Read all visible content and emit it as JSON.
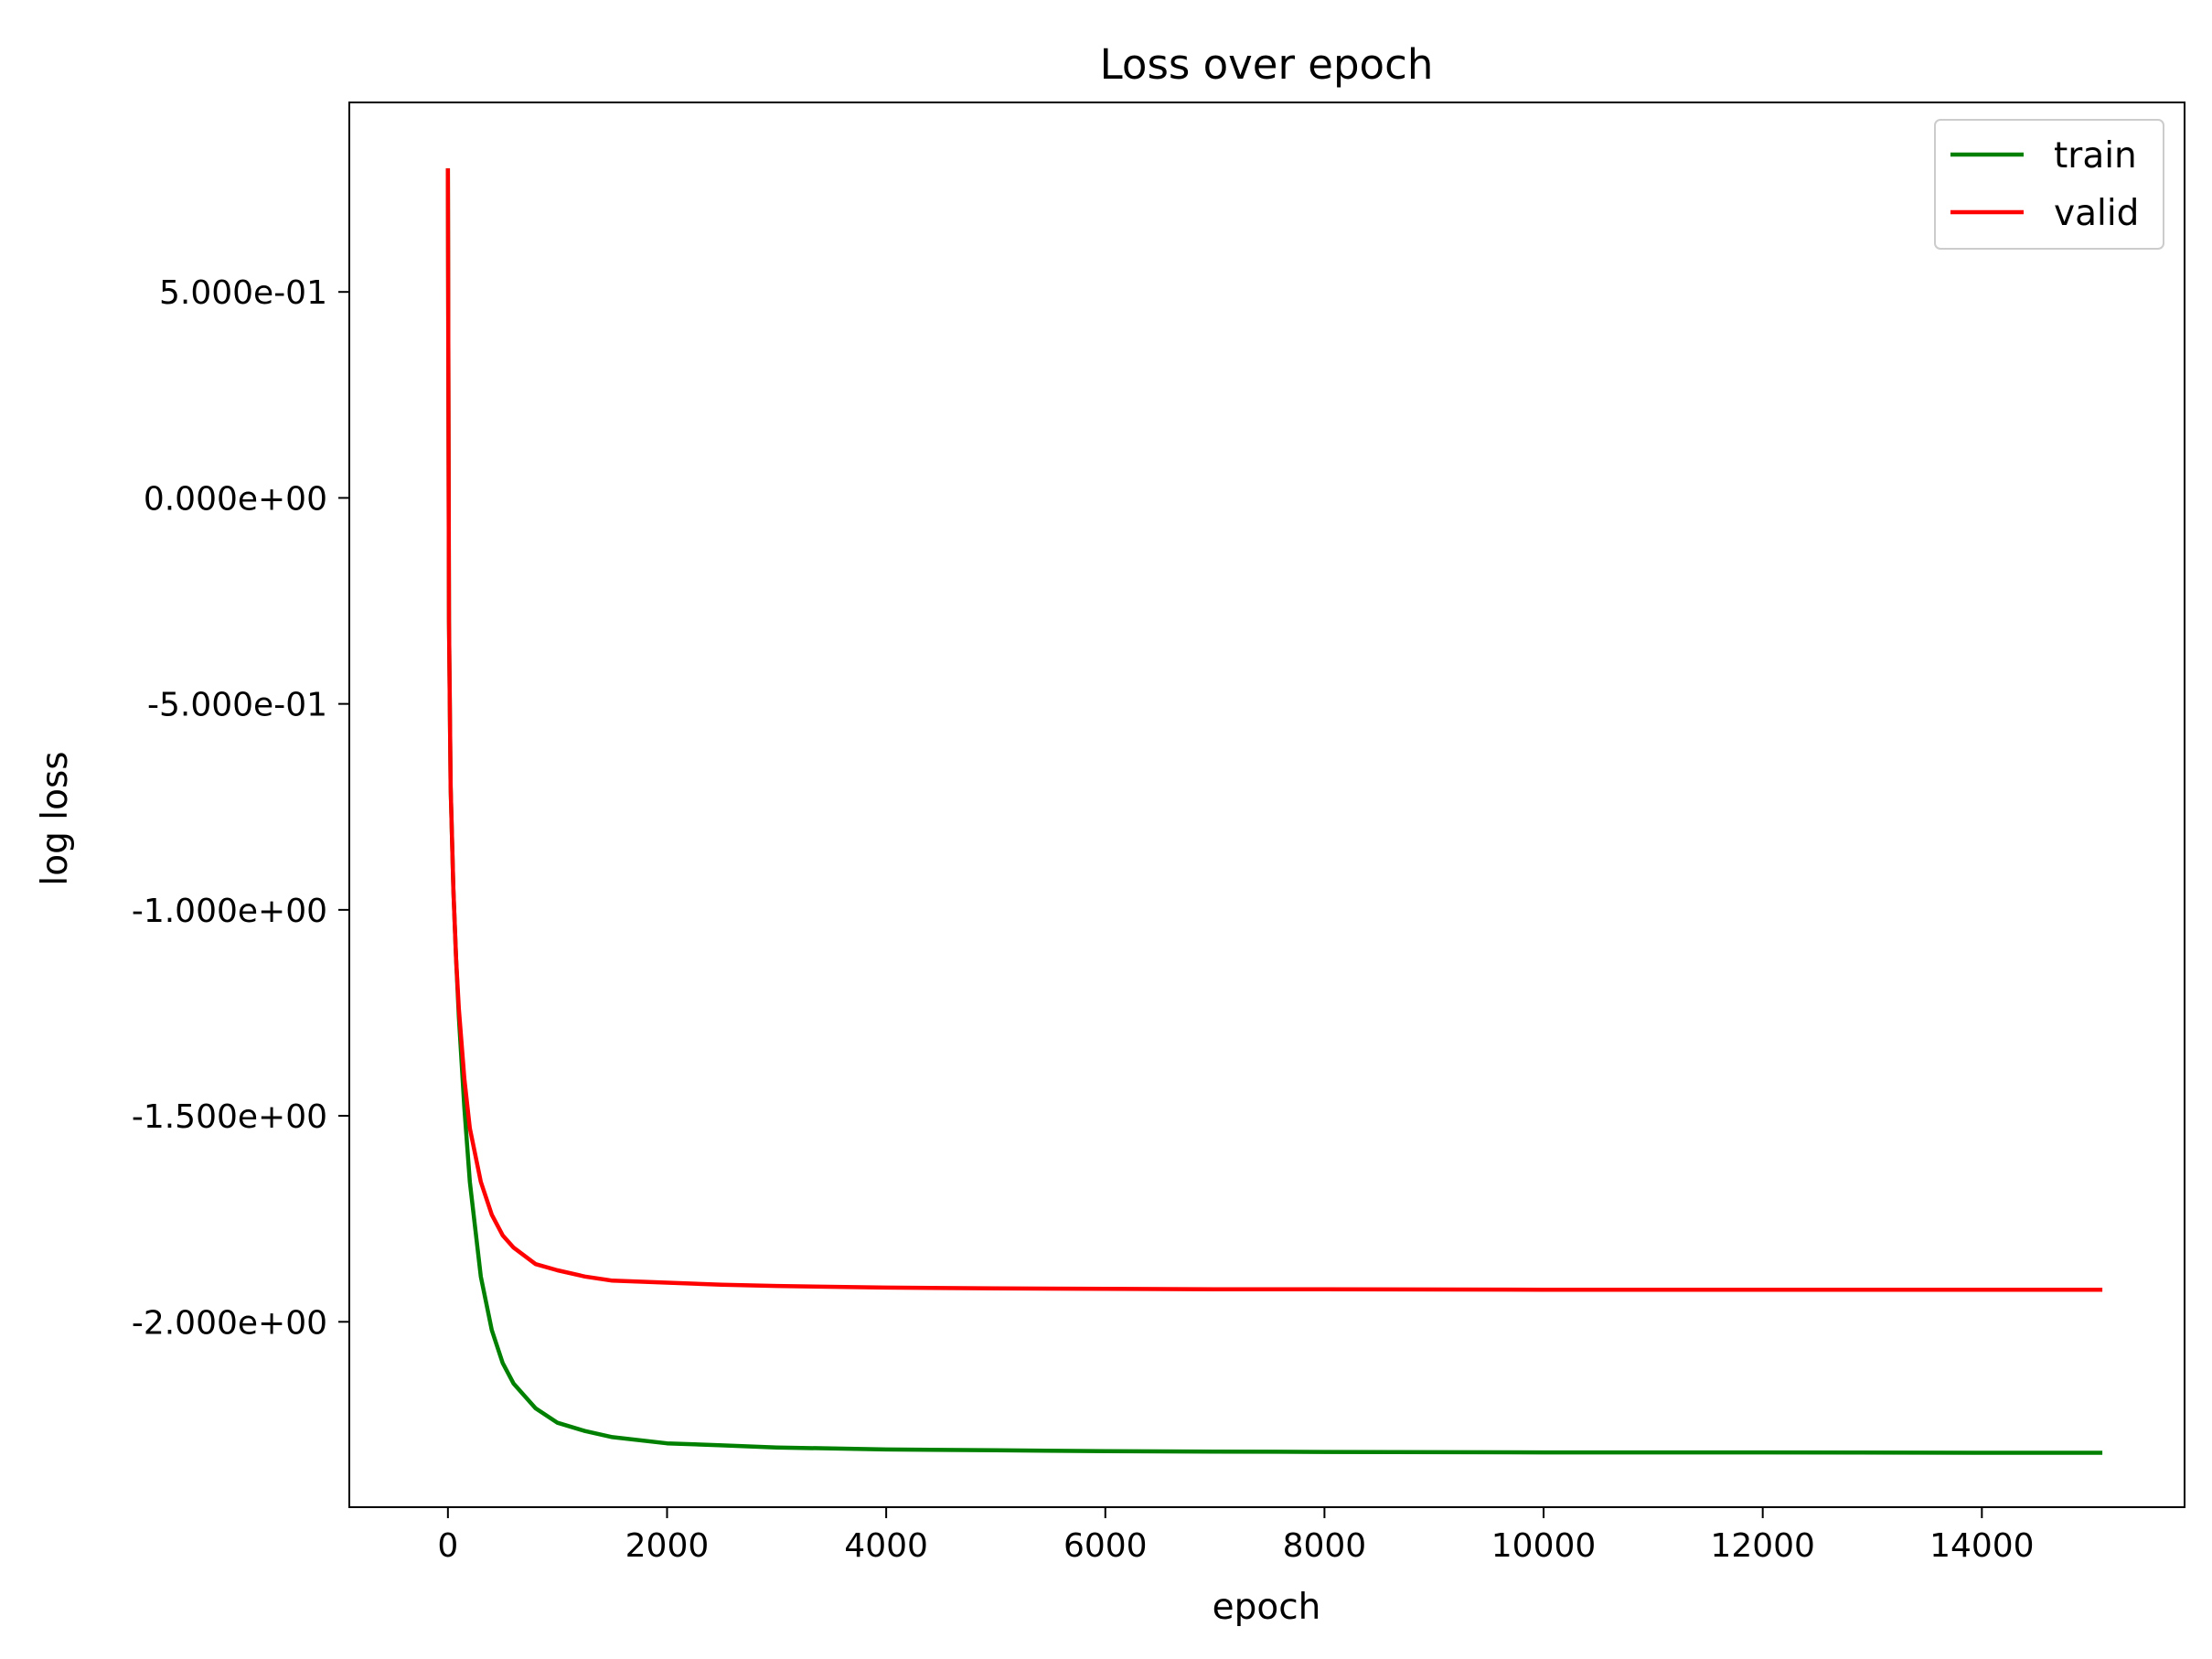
{
  "chart_data": {
    "type": "line",
    "title": "Loss over epoch",
    "xlabel": "epoch",
    "ylabel": "log loss",
    "xlim": [
      -900,
      15850
    ],
    "ylim": [
      -2.45,
      0.96
    ],
    "x_ticks": [
      0,
      2000,
      4000,
      6000,
      8000,
      10000,
      12000,
      14000
    ],
    "x_tick_labels": [
      "0",
      "2000",
      "4000",
      "6000",
      "8000",
      "10000",
      "12000",
      "14000"
    ],
    "y_ticks": [
      0.5,
      0.0,
      -0.5,
      -1.0,
      -1.5,
      -2.0
    ],
    "y_tick_labels": [
      "5.000e-01",
      "0.000e+00",
      "-5.000e-01",
      "-1.000e+00",
      "-1.500e+00",
      "-2.000e+00"
    ],
    "grid": false,
    "legend_position": "top-right",
    "series": [
      {
        "name": "train",
        "color": "#008000",
        "x": [
          0,
          10,
          25,
          50,
          75,
          100,
          150,
          200,
          300,
          400,
          500,
          600,
          800,
          1000,
          1250,
          1500,
          2000,
          2500,
          3000,
          4000,
          5000,
          6000,
          7000,
          8000,
          10000,
          12000,
          14000,
          15100
        ],
        "y": [
          0.8,
          -0.3,
          -0.7,
          -0.95,
          -1.12,
          -1.26,
          -1.48,
          -1.66,
          -1.89,
          -2.02,
          -2.1,
          -2.15,
          -2.21,
          -2.245,
          -2.265,
          -2.28,
          -2.295,
          -2.3,
          -2.305,
          -2.31,
          -2.312,
          -2.314,
          -2.315,
          -2.316,
          -2.317,
          -2.317,
          -2.318,
          -2.318
        ]
      },
      {
        "name": "valid",
        "color": "#ff0000",
        "x": [
          0,
          10,
          25,
          50,
          75,
          100,
          150,
          200,
          300,
          400,
          500,
          600,
          800,
          1000,
          1250,
          1500,
          2000,
          2500,
          3000,
          4000,
          5000,
          6000,
          7000,
          8000,
          10000,
          12000,
          14000,
          15100
        ],
        "y": [
          0.8,
          -0.3,
          -0.7,
          -0.95,
          -1.12,
          -1.24,
          -1.41,
          -1.53,
          -1.66,
          -1.74,
          -1.79,
          -1.82,
          -1.86,
          -1.875,
          -1.89,
          -1.9,
          -1.905,
          -1.91,
          -1.913,
          -1.917,
          -1.919,
          -1.92,
          -1.921,
          -1.921,
          -1.922,
          -1.922,
          -1.922,
          -1.922
        ]
      }
    ]
  }
}
